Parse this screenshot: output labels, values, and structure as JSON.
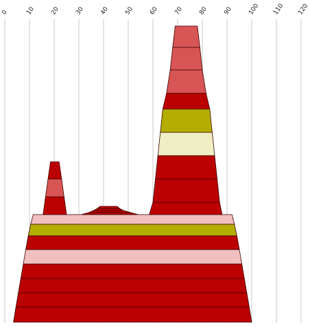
{
  "chart_data": {
    "type": "area",
    "title": "",
    "xlabel": "",
    "ylabel": "",
    "xlim": [
      0,
      120
    ],
    "x_ticks": [
      0,
      10,
      20,
      30,
      40,
      50,
      60,
      70,
      80,
      90,
      100,
      110,
      120
    ],
    "x_tick_labels": [
      "0",
      "10",
      "20",
      "30",
      "40",
      "50",
      "60",
      "70",
      "80",
      "90",
      "100",
      "110",
      "120"
    ],
    "grid": "vertical",
    "legend": "none",
    "colors": {
      "dark_red": "#bb0000",
      "salmon": "#d85555",
      "olive": "#b3ad00",
      "cream": "#f0eec4",
      "pink": "#f0c0c0",
      "grid": "#c8c8c8",
      "outline": "#3a0000"
    },
    "stacks": [
      {
        "name": "base",
        "layers": [
          {
            "x_bottom": [
              3.5,
              100
            ],
            "x_top": [
              4.5,
              99
            ],
            "color": "dark_red"
          },
          {
            "x_bottom": [
              4.5,
              99
            ],
            "x_top": [
              5.5,
              98
            ],
            "color": "dark_red"
          },
          {
            "x_bottom": [
              5.5,
              98
            ],
            "x_top": [
              6.5,
              97
            ],
            "color": "dark_red"
          },
          {
            "x_bottom": [
              6.5,
              97
            ],
            "x_top": [
              7.5,
              96
            ],
            "color": "dark_red"
          },
          {
            "x_bottom": [
              7.5,
              96
            ],
            "x_top": [
              8.5,
              95
            ],
            "color": "pink"
          },
          {
            "x_bottom": [
              8.5,
              95
            ],
            "x_top": [
              9.5,
              94
            ],
            "color": "dark_red"
          },
          {
            "x_bottom": [
              9.5,
              94
            ],
            "x_top": [
              10.5,
              93
            ],
            "color": "olive"
          },
          {
            "x_bottom": [
              10.5,
              93
            ],
            "x_top": [
              11.5,
              92
            ],
            "color": "pink"
          }
        ]
      },
      {
        "name": "left-peak",
        "layers": [
          {
            "x_bottom": [
              15.5,
              25
            ],
            "x_top": [
              16.5,
              24
            ],
            "color": "dark_red"
          },
          {
            "x_bottom": [
              16.5,
              24
            ],
            "x_top": [
              17.5,
              23
            ],
            "color": "salmon"
          },
          {
            "x_bottom": [
              17.5,
              23
            ],
            "x_top": [
              18.5,
              22
            ],
            "color": "dark_red"
          }
        ]
      },
      {
        "name": "middle-bump",
        "layers": [
          {
            "x_bottom": [
              31,
              54
            ],
            "x_top": [
              34,
              51
            ],
            "color": "dark_red"
          },
          {
            "x_bottom": [
              34,
              51
            ],
            "x_top": [
              36,
              48
            ],
            "color": "dark_red"
          },
          {
            "x_bottom": [
              36,
              48
            ],
            "x_top": [
              37.5,
              46.5
            ],
            "color": "dark_red"
          },
          {
            "x_bottom": [
              37.5,
              46.5
            ],
            "x_top": [
              38.5,
              45.5
            ],
            "color": "dark_red"
          }
        ]
      },
      {
        "name": "right-peak",
        "layers": [
          {
            "x_bottom": [
              58.5,
              88
            ],
            "x_top": [
              60,
              87
            ],
            "color": "dark_red"
          },
          {
            "x_bottom": [
              60,
              87
            ],
            "x_top": [
              61,
              86
            ],
            "color": "dark_red"
          },
          {
            "x_bottom": [
              61,
              86
            ],
            "x_top": [
              62,
              85
            ],
            "color": "dark_red"
          },
          {
            "x_bottom": [
              62,
              85
            ],
            "x_top": [
              63,
              84
            ],
            "color": "cream"
          },
          {
            "x_bottom": [
              63,
              84
            ],
            "x_top": [
              64,
              83
            ],
            "color": "olive"
          },
          {
            "x_bottom": [
              64,
              83
            ],
            "x_top": [
              65.5,
              81.5
            ],
            "color": "dark_red"
          },
          {
            "x_bottom": [
              65.5,
              81.5
            ],
            "x_top": [
              67,
              80
            ],
            "color": "salmon"
          },
          {
            "x_bottom": [
              67,
              80
            ],
            "x_top": [
              68,
              79
            ],
            "color": "salmon"
          },
          {
            "x_bottom": [
              68,
              79
            ],
            "x_top": [
              69,
              78
            ],
            "color": "salmon"
          }
        ]
      }
    ]
  }
}
